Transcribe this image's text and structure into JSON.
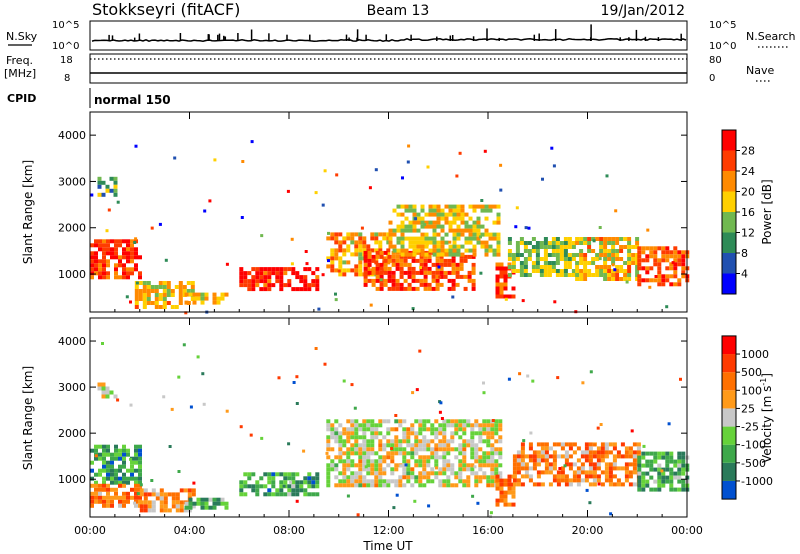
{
  "header": {
    "station": "Stokkseyri (fitACF)",
    "beam": "Beam 13",
    "date": "19/Jan/2012"
  },
  "noise_panel": {
    "left_label": "N.Sky",
    "left_ticks": [
      "10^5",
      "10^0"
    ],
    "right_ticks": [
      "10^5",
      "10^0"
    ],
    "right_label": "N.Search"
  },
  "freq_panel": {
    "left_label_1": "Freq.",
    "left_label_2": "[MHz]",
    "left_ticks": [
      "18",
      "8"
    ],
    "right_ticks": [
      "80",
      "0"
    ],
    "right_label": "Nave"
  },
  "cpid_panel": {
    "label": "CPID",
    "value": "normal 150"
  },
  "chart_data": [
    {
      "type": "heatmap",
      "panel": "power",
      "xlabel": "",
      "ylabel": "Slant Range [km]",
      "ylim": [
        180,
        4500
      ],
      "y_ticks": [
        "1000",
        "2000",
        "3000",
        "4000"
      ],
      "y_tick_values": [
        1000,
        2000,
        3000,
        4000
      ],
      "colorbar": {
        "label": "Power [dB]",
        "ticks": [
          "4",
          "8",
          "12",
          "16",
          "20",
          "24",
          "28"
        ],
        "colors": [
          "#0000ff",
          "#2050b0",
          "#2e8b57",
          "#70b850",
          "#ffd000",
          "#ff8a00",
          "#ff3c00",
          "#ff0000"
        ]
      },
      "regions": [
        {
          "t0": 0.0,
          "t1": 2.0,
          "r0": 950,
          "r1": 1750,
          "level": 0.85
        },
        {
          "t0": 0.3,
          "t1": 1.0,
          "r0": 2700,
          "r1": 3100,
          "level": 0.35
        },
        {
          "t0": 1.8,
          "t1": 4.2,
          "r0": 300,
          "r1": 850,
          "level": 0.6
        },
        {
          "t0": 3.8,
          "t1": 5.5,
          "r0": 350,
          "r1": 600,
          "level": 0.55
        },
        {
          "t0": 6.0,
          "t1": 9.2,
          "r0": 700,
          "r1": 1150,
          "level": 0.9
        },
        {
          "t0": 9.5,
          "t1": 12.0,
          "r0": 950,
          "r1": 1900,
          "level": 0.65
        },
        {
          "t0": 11.0,
          "t1": 15.5,
          "r0": 700,
          "r1": 1500,
          "level": 0.8
        },
        {
          "t0": 12.0,
          "t1": 16.5,
          "r0": 1400,
          "r1": 2500,
          "level": 0.55
        },
        {
          "t0": 16.3,
          "t1": 17.0,
          "r0": 550,
          "r1": 1250,
          "level": 0.85
        },
        {
          "t0": 16.8,
          "t1": 19.5,
          "r0": 950,
          "r1": 1800,
          "level": 0.45
        },
        {
          "t0": 19.5,
          "t1": 22.0,
          "r0": 900,
          "r1": 1800,
          "level": 0.6
        },
        {
          "t0": 22.0,
          "t1": 24.0,
          "r0": 800,
          "r1": 1600,
          "level": 0.8
        }
      ]
    },
    {
      "type": "heatmap",
      "panel": "velocity",
      "xlabel": "Time UT",
      "ylabel": "Slant Range [km]",
      "ylim": [
        180,
        4500
      ],
      "y_ticks": [
        "1000",
        "2000",
        "3000",
        "4000"
      ],
      "y_tick_values": [
        1000,
        2000,
        3000,
        4000
      ],
      "x_ticks": [
        "00:00",
        "04:00",
        "08:00",
        "12:00",
        "16:00",
        "20:00",
        "00:00"
      ],
      "x_tick_hours": [
        0,
        4,
        8,
        12,
        16,
        20,
        24
      ],
      "colorbar": {
        "label": "Velocity",
        "unit": "[m s",
        "unit_exp": "-1",
        "unit_close": "]",
        "ticks": [
          "1000",
          "500",
          "100",
          "25",
          "-25",
          "-100",
          "-500",
          "-1000"
        ],
        "colors": [
          "#0050d0",
          "#2a7a5a",
          "#3ea84a",
          "#66d23a",
          "#c8c8c8",
          "#ff9a1a",
          "#ff7000",
          "#ff3a00",
          "#ff0000"
        ]
      },
      "regions": [
        {
          "t0": 0.0,
          "t1": 2.0,
          "r0": 950,
          "r1": 1750,
          "level": 0.25
        },
        {
          "t0": 0.0,
          "t1": 2.0,
          "r0": 400,
          "r1": 900,
          "level": 0.7
        },
        {
          "t0": 0.3,
          "t1": 1.0,
          "r0": 2800,
          "r1": 3100,
          "level": 0.5
        },
        {
          "t0": 2.0,
          "t1": 4.2,
          "r0": 300,
          "r1": 800,
          "level": 0.65
        },
        {
          "t0": 3.8,
          "t1": 5.5,
          "r0": 350,
          "r1": 600,
          "level": 0.3
        },
        {
          "t0": 6.0,
          "t1": 9.2,
          "r0": 700,
          "r1": 1150,
          "level": 0.28
        },
        {
          "t0": 9.5,
          "t1": 16.5,
          "r0": 900,
          "r1": 2300,
          "level": 0.5
        },
        {
          "t0": 16.3,
          "t1": 17.0,
          "r0": 450,
          "r1": 1100,
          "level": 0.72
        },
        {
          "t0": 17.0,
          "t1": 22.0,
          "r0": 900,
          "r1": 1800,
          "level": 0.68
        },
        {
          "t0": 22.0,
          "t1": 24.0,
          "r0": 800,
          "r1": 1600,
          "level": 0.3
        }
      ]
    }
  ]
}
